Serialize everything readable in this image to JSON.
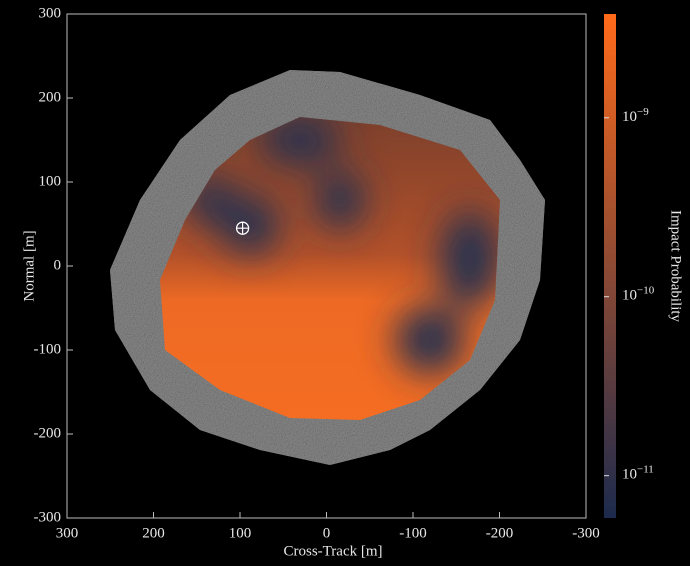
{
  "chart_data": {
    "type": "heatmap",
    "xlabel": "Cross-Track [m]",
    "ylabel": "Normal [m]",
    "xlim": [
      300,
      -300
    ],
    "ylim": [
      -300,
      300
    ],
    "xticks": [
      300,
      200,
      100,
      0,
      -100,
      -200,
      -300
    ],
    "yticks": [
      300,
      200,
      100,
      0,
      -100,
      -200,
      -300
    ],
    "marker": {
      "x": 97,
      "y": 45
    },
    "colorbar": {
      "label": "Impact Probability",
      "scale": "log",
      "lim": [
        5.8e-12,
        3.8e-09
      ],
      "colors": [
        "#1c2a4d",
        "#ff6a1a"
      ],
      "ticks": [
        {
          "value": 1e-09,
          "label": "10",
          "exponent": "−9"
        },
        {
          "value": 1e-10,
          "label": "10",
          "exponent": "−10"
        },
        {
          "value": 1e-11,
          "label": "10",
          "exponent": "−11"
        }
      ]
    }
  }
}
